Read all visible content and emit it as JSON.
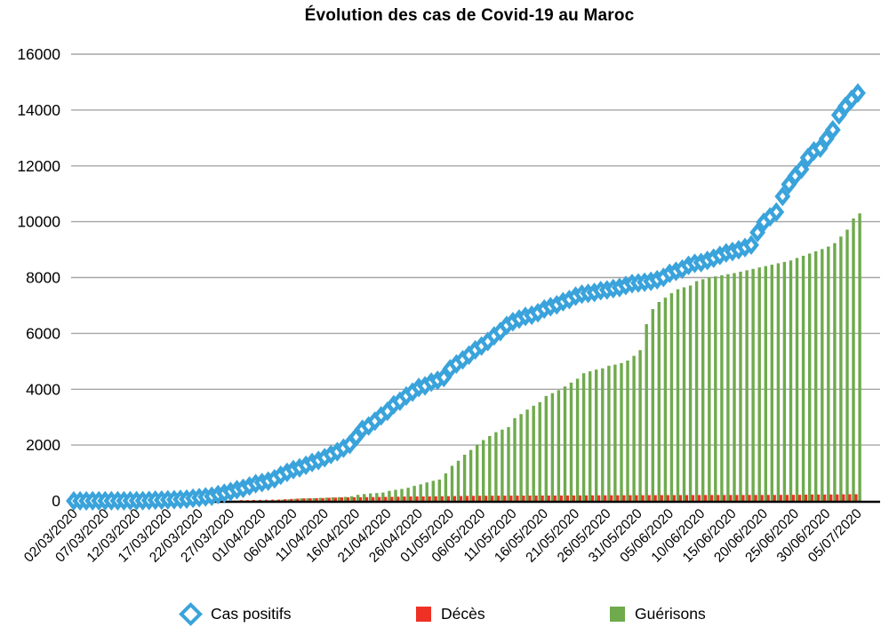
{
  "chart_data": {
    "type": "composite",
    "title": "Évolution des cas de Covid-19 au Maroc",
    "xlabel": "",
    "ylabel": "",
    "ylim": [
      0,
      16000
    ],
    "y_tick_step": 2000,
    "x_tick_every": 5,
    "grid": "horizontal",
    "legend_position": "bottom",
    "colors": {
      "grid": "#a6a6a6",
      "axis": "#000000",
      "text": "#000000"
    },
    "x": [
      "02/03/2020",
      "03/03/2020",
      "04/03/2020",
      "05/03/2020",
      "06/03/2020",
      "07/03/2020",
      "08/03/2020",
      "09/03/2020",
      "10/03/2020",
      "11/03/2020",
      "12/03/2020",
      "13/03/2020",
      "14/03/2020",
      "15/03/2020",
      "16/03/2020",
      "17/03/2020",
      "18/03/2020",
      "19/03/2020",
      "20/03/2020",
      "21/03/2020",
      "22/03/2020",
      "23/03/2020",
      "24/03/2020",
      "25/03/2020",
      "26/03/2020",
      "27/03/2020",
      "28/03/2020",
      "29/03/2020",
      "30/03/2020",
      "31/03/2020",
      "01/04/2020",
      "02/04/2020",
      "03/04/2020",
      "04/04/2020",
      "05/04/2020",
      "06/04/2020",
      "07/04/2020",
      "08/04/2020",
      "09/04/2020",
      "10/04/2020",
      "11/04/2020",
      "12/04/2020",
      "13/04/2020",
      "14/04/2020",
      "15/04/2020",
      "16/04/2020",
      "17/04/2020",
      "18/04/2020",
      "19/04/2020",
      "20/04/2020",
      "21/04/2020",
      "22/04/2020",
      "23/04/2020",
      "24/04/2020",
      "25/04/2020",
      "26/04/2020",
      "27/04/2020",
      "28/04/2020",
      "29/04/2020",
      "30/04/2020",
      "01/05/2020",
      "02/05/2020",
      "03/05/2020",
      "04/05/2020",
      "05/05/2020",
      "06/05/2020",
      "07/05/2020",
      "08/05/2020",
      "09/05/2020",
      "10/05/2020",
      "11/05/2020",
      "12/05/2020",
      "13/05/2020",
      "14/05/2020",
      "15/05/2020",
      "16/05/2020",
      "17/05/2020",
      "18/05/2020",
      "19/05/2020",
      "20/05/2020",
      "21/05/2020",
      "22/05/2020",
      "23/05/2020",
      "24/05/2020",
      "25/05/2020",
      "26/05/2020",
      "27/05/2020",
      "28/05/2020",
      "29/05/2020",
      "30/05/2020",
      "31/05/2020",
      "01/06/2020",
      "02/06/2020",
      "03/06/2020",
      "04/06/2020",
      "05/06/2020",
      "06/06/2020",
      "07/06/2020",
      "08/06/2020",
      "09/06/2020",
      "10/06/2020",
      "11/06/2020",
      "12/06/2020",
      "13/06/2020",
      "14/06/2020",
      "15/06/2020",
      "16/06/2020",
      "17/06/2020",
      "18/06/2020",
      "19/06/2020",
      "20/06/2020",
      "21/06/2020",
      "22/06/2020",
      "23/06/2020",
      "24/06/2020",
      "25/06/2020",
      "26/06/2020",
      "27/06/2020",
      "28/06/2020",
      "29/06/2020",
      "30/06/2020",
      "01/07/2020",
      "02/07/2020",
      "03/07/2020",
      "04/07/2020",
      "05/07/2020"
    ],
    "series": [
      {
        "name": "Cas positifs",
        "type": "scatter",
        "marker": "diamond-open",
        "color": "#3aa3db",
        "values": [
          1,
          1,
          1,
          2,
          2,
          2,
          2,
          2,
          3,
          5,
          6,
          8,
          17,
          28,
          29,
          38,
          44,
          53,
          63,
          96,
          115,
          143,
          170,
          225,
          275,
          333,
          402,
          450,
          534,
          617,
          654,
          708,
          791,
          919,
          1021,
          1120,
          1184,
          1275,
          1374,
          1448,
          1545,
          1661,
          1763,
          1888,
          2024,
          2283,
          2564,
          2685,
          2855,
          3046,
          3209,
          3446,
          3568,
          3758,
          3897,
          4065,
          4120,
          4252,
          4321,
          4423,
          4729,
          4903,
          5053,
          5219,
          5408,
          5548,
          5711,
          5910,
          6063,
          6281,
          6418,
          6512,
          6607,
          6652,
          6741,
          6870,
          6952,
          7023,
          7133,
          7211,
          7332,
          7406,
          7433,
          7467,
          7532,
          7556,
          7601,
          7643,
          7714,
          7780,
          7807,
          7833,
          7866,
          7922,
          8003,
          8151,
          8224,
          8302,
          8437,
          8508,
          8537,
          8610,
          8692,
          8793,
          8885,
          8931,
          8997,
          9074,
          9164,
          9613,
          9977,
          10172,
          10344,
          10907,
          11338,
          11633,
          11877,
          12290,
          12533,
          12636,
          12969,
          13288,
          13822,
          14132,
          14379,
          14607
        ]
      },
      {
        "name": "Décès",
        "type": "bar",
        "color": "#ee3124",
        "values": [
          0,
          0,
          0,
          0,
          0,
          0,
          0,
          0,
          1,
          1,
          1,
          2,
          2,
          2,
          2,
          2,
          2,
          2,
          2,
          2,
          3,
          4,
          4,
          5,
          6,
          10,
          11,
          25,
          26,
          33,
          36,
          39,
          44,
          48,
          59,
          70,
          80,
          90,
          93,
          97,
          101,
          111,
          118,
          126,
          128,
          130,
          132,
          135,
          137,
          141,
          143,
          145,
          149,
          155,
          158,
          159,
          161,
          162,
          165,
          168,
          170,
          173,
          174,
          179,
          181,
          183,
          183,
          186,
          186,
          188,
          188,
          188,
          189,
          190,
          190,
          192,
          192,
          193,
          193,
          194,
          195,
          197,
          198,
          199,
          199,
          200,
          202,
          202,
          202,
          204,
          204,
          205,
          206,
          206,
          207,
          208,
          208,
          208,
          208,
          209,
          210,
          211,
          211,
          212,
          212,
          212,
          212,
          212,
          213,
          213,
          213,
          214,
          214,
          216,
          216,
          218,
          218,
          224,
          228,
          228,
          228,
          229,
          232,
          235,
          239,
          240
        ]
      },
      {
        "name": "Guérisons",
        "type": "bar",
        "color": "#6faa4c",
        "values": [
          0,
          0,
          0,
          0,
          0,
          0,
          0,
          0,
          0,
          0,
          0,
          0,
          0,
          0,
          0,
          0,
          0,
          1,
          1,
          1,
          2,
          3,
          5,
          6,
          7,
          8,
          10,
          11,
          13,
          15,
          20,
          26,
          31,
          44,
          57,
          76,
          90,
          93,
          97,
          109,
          117,
          128,
          135,
          144,
          168,
          218,
          245,
          268,
          281,
          300,
          359,
          397,
          428,
          470,
          537,
          593,
          662,
          720,
          762,
          984,
          1256,
          1438,
          1653,
          1824,
          2017,
          2179,
          2324,
          2461,
          2554,
          2645,
          2964,
          3110,
          3270,
          3408,
          3538,
          3758,
          3858,
          3965,
          4098,
          4237,
          4377,
          4573,
          4640,
          4703,
          4748,
          4841,
          4881,
          4937,
          5027,
          5195,
          5400,
          6330,
          6870,
          7125,
          7280,
          7440,
          7580,
          7650,
          7714,
          7870,
          7939,
          8000,
          8040,
          8080,
          8120,
          8160,
          8210,
          8260,
          8310,
          8360,
          8410,
          8460,
          8510,
          8560,
          8610,
          8700,
          8780,
          8860,
          8940,
          9020,
          9110,
          9233,
          9468,
          9715,
          10116,
          10297
        ]
      }
    ]
  }
}
